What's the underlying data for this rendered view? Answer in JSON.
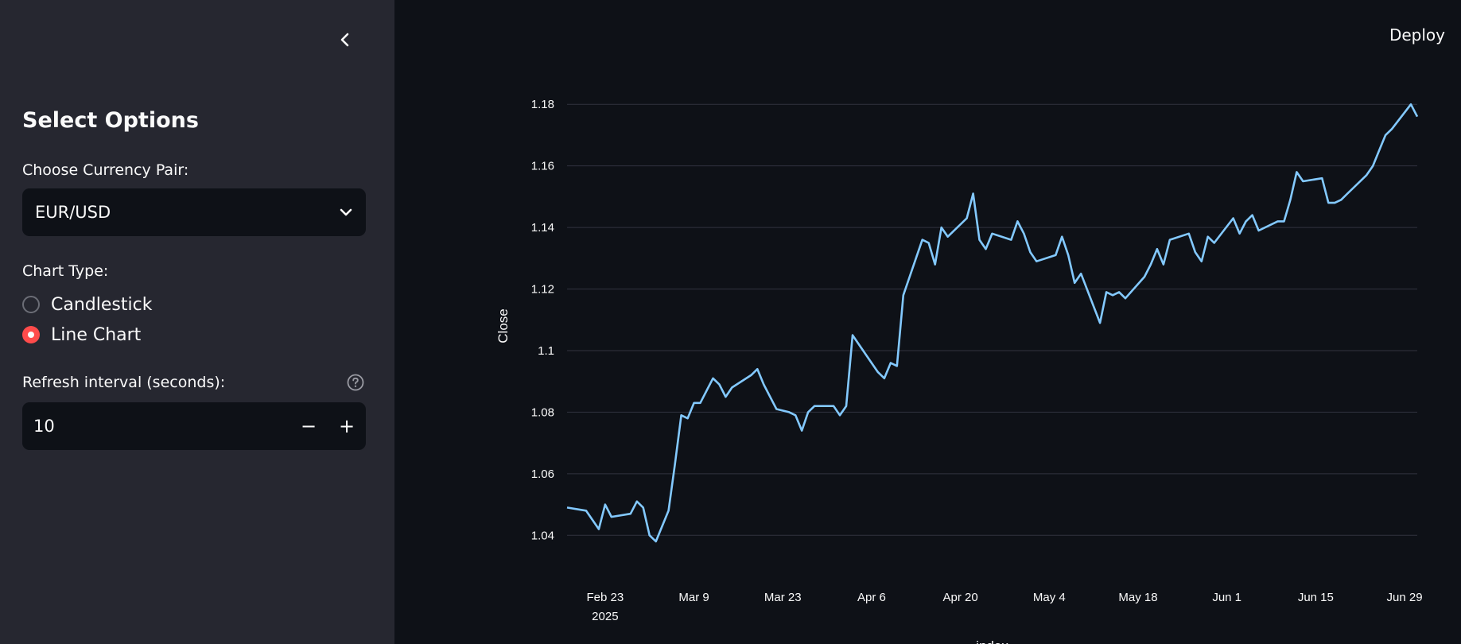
{
  "sidebar": {
    "title": "Select Options",
    "currency_label": "Choose Currency Pair:",
    "currency_value": "EUR/USD",
    "chart_type_label": "Chart Type:",
    "chart_types": [
      "Candlestick",
      "Line Chart"
    ],
    "chart_type_selected": "Line Chart",
    "refresh_label": "Refresh interval (seconds):",
    "refresh_value": "10",
    "minus_label": "−",
    "plus_label": "+"
  },
  "header": {
    "deploy_label": "Deploy"
  },
  "colors": {
    "line": "#83c9ff",
    "accent": "#ff4b4b",
    "grid": "#31333f"
  },
  "chart_data": {
    "type": "line",
    "title": "",
    "xlabel": "index",
    "ylabel": "Close",
    "ylim": [
      1.03,
      1.186
    ],
    "yticks": [
      1.04,
      1.06,
      1.08,
      1.1,
      1.12,
      1.14,
      1.16,
      1.18
    ],
    "ytick_labels": [
      "1.04",
      "1.06",
      "1.08",
      "1.1",
      "1.12",
      "1.14",
      "1.16",
      "1.18"
    ],
    "xlim": [
      "2025-02-17",
      "2025-07-01"
    ],
    "xticks": [
      "2025-02-23",
      "2025-03-09",
      "2025-03-23",
      "2025-04-06",
      "2025-04-20",
      "2025-05-04",
      "2025-05-18",
      "2025-06-01",
      "2025-06-15",
      "2025-06-29"
    ],
    "xtick_labels": [
      "Feb 23",
      "Mar 9",
      "Mar 23",
      "Apr 6",
      "Apr 20",
      "May 4",
      "May 18",
      "Jun 1",
      "Jun 15",
      "Jun 29"
    ],
    "xtick_sublabels": [
      "2025",
      "",
      "",
      "",
      "",
      "",
      "",
      "",
      "",
      ""
    ],
    "grid": true,
    "series": [
      {
        "x": [
          "2025-02-17",
          "2025-02-20",
          "2025-02-21",
          "2025-02-22",
          "2025-02-23",
          "2025-02-24",
          "2025-02-27",
          "2025-02-28",
          "2025-03-01",
          "2025-03-02",
          "2025-03-03",
          "2025-03-05",
          "2025-03-06",
          "2025-03-07",
          "2025-03-08",
          "2025-03-09",
          "2025-03-10",
          "2025-03-12",
          "2025-03-13",
          "2025-03-14",
          "2025-03-15",
          "2025-03-18",
          "2025-03-19",
          "2025-03-20",
          "2025-03-22",
          "2025-03-24",
          "2025-03-25",
          "2025-03-26",
          "2025-03-27",
          "2025-03-28",
          "2025-03-31",
          "2025-04-01",
          "2025-04-02",
          "2025-04-03",
          "2025-04-06",
          "2025-04-07",
          "2025-04-08",
          "2025-04-09",
          "2025-04-10",
          "2025-04-11",
          "2025-04-14",
          "2025-04-15",
          "2025-04-16",
          "2025-04-17",
          "2025-04-18",
          "2025-04-21",
          "2025-04-22",
          "2025-04-23",
          "2025-04-24",
          "2025-04-25",
          "2025-04-28",
          "2025-04-29",
          "2025-04-30",
          "2025-05-01",
          "2025-05-02",
          "2025-05-05",
          "2025-05-06",
          "2025-05-07",
          "2025-05-08",
          "2025-05-09",
          "2025-05-12",
          "2025-05-13",
          "2025-05-14",
          "2025-05-15",
          "2025-05-16",
          "2025-05-19",
          "2025-05-20",
          "2025-05-21",
          "2025-05-22",
          "2025-05-23",
          "2025-05-26",
          "2025-05-27",
          "2025-05-28",
          "2025-05-29",
          "2025-05-30",
          "2025-06-02",
          "2025-06-03",
          "2025-06-04",
          "2025-06-05",
          "2025-06-06",
          "2025-06-09",
          "2025-06-10",
          "2025-06-11",
          "2025-06-12",
          "2025-06-13",
          "2025-06-16",
          "2025-06-17",
          "2025-06-18",
          "2025-06-19",
          "2025-06-20",
          "2025-06-23",
          "2025-06-24",
          "2025-06-25",
          "2025-06-26",
          "2025-06-27",
          "2025-06-30",
          "2025-07-01"
        ],
        "y": [
          1.049,
          1.048,
          1.045,
          1.042,
          1.05,
          1.046,
          1.047,
          1.051,
          1.049,
          1.04,
          1.038,
          1.048,
          1.063,
          1.079,
          1.078,
          1.083,
          1.083,
          1.091,
          1.089,
          1.085,
          1.088,
          1.092,
          1.094,
          1.089,
          1.081,
          1.08,
          1.079,
          1.074,
          1.08,
          1.082,
          1.082,
          1.079,
          1.082,
          1.105,
          1.096,
          1.093,
          1.091,
          1.096,
          1.095,
          1.118,
          1.136,
          1.135,
          1.128,
          1.14,
          1.137,
          1.143,
          1.151,
          1.136,
          1.133,
          1.138,
          1.136,
          1.142,
          1.138,
          1.132,
          1.129,
          1.131,
          1.137,
          1.131,
          1.122,
          1.125,
          1.109,
          1.119,
          1.118,
          1.119,
          1.117,
          1.124,
          1.128,
          1.133,
          1.128,
          1.136,
          1.138,
          1.132,
          1.129,
          1.137,
          1.135,
          1.143,
          1.138,
          1.142,
          1.144,
          1.139,
          1.142,
          1.142,
          1.149,
          1.158,
          1.155,
          1.156,
          1.148,
          1.148,
          1.149,
          1.151,
          1.157,
          1.16,
          1.165,
          1.17,
          1.172,
          1.18,
          1.176
        ]
      }
    ]
  }
}
